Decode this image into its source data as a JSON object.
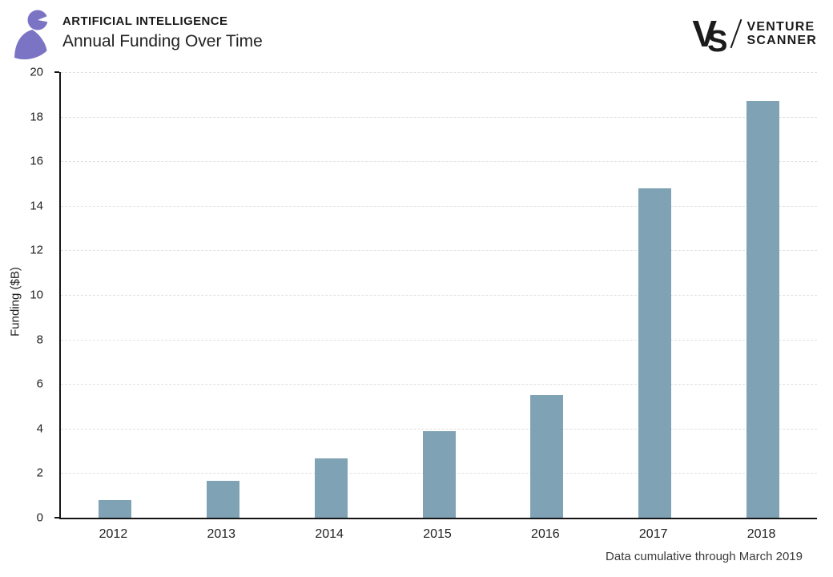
{
  "header": {
    "category": "ARTIFICIAL INTELLIGENCE",
    "title": "Annual Funding Over Time",
    "logo_color": "#7b74c4",
    "brand": {
      "monogram_v": "V",
      "monogram_s": "S",
      "word1": "VENTURE",
      "word2": "SCANNER"
    }
  },
  "chart_data": {
    "type": "bar",
    "categories": [
      "2012",
      "2013",
      "2014",
      "2015",
      "2016",
      "2017",
      "2018"
    ],
    "values": [
      0.8,
      1.65,
      2.65,
      3.9,
      5.5,
      14.8,
      18.7
    ],
    "title": "Annual Funding Over Time",
    "xlabel": "",
    "ylabel": "Funding ($B)",
    "ylim": [
      0,
      20
    ],
    "ytick_step": 2,
    "yticks": [
      0,
      2,
      4,
      6,
      8,
      10,
      12,
      14,
      16,
      18,
      20
    ],
    "grid": "horizontal-dashed",
    "legend_position": "none",
    "bar_color": "#7fa3b5",
    "grid_color": "#e0e0e0",
    "axis_color": "#161616"
  },
  "footer": {
    "note": "Data cumulative through March 2019"
  }
}
